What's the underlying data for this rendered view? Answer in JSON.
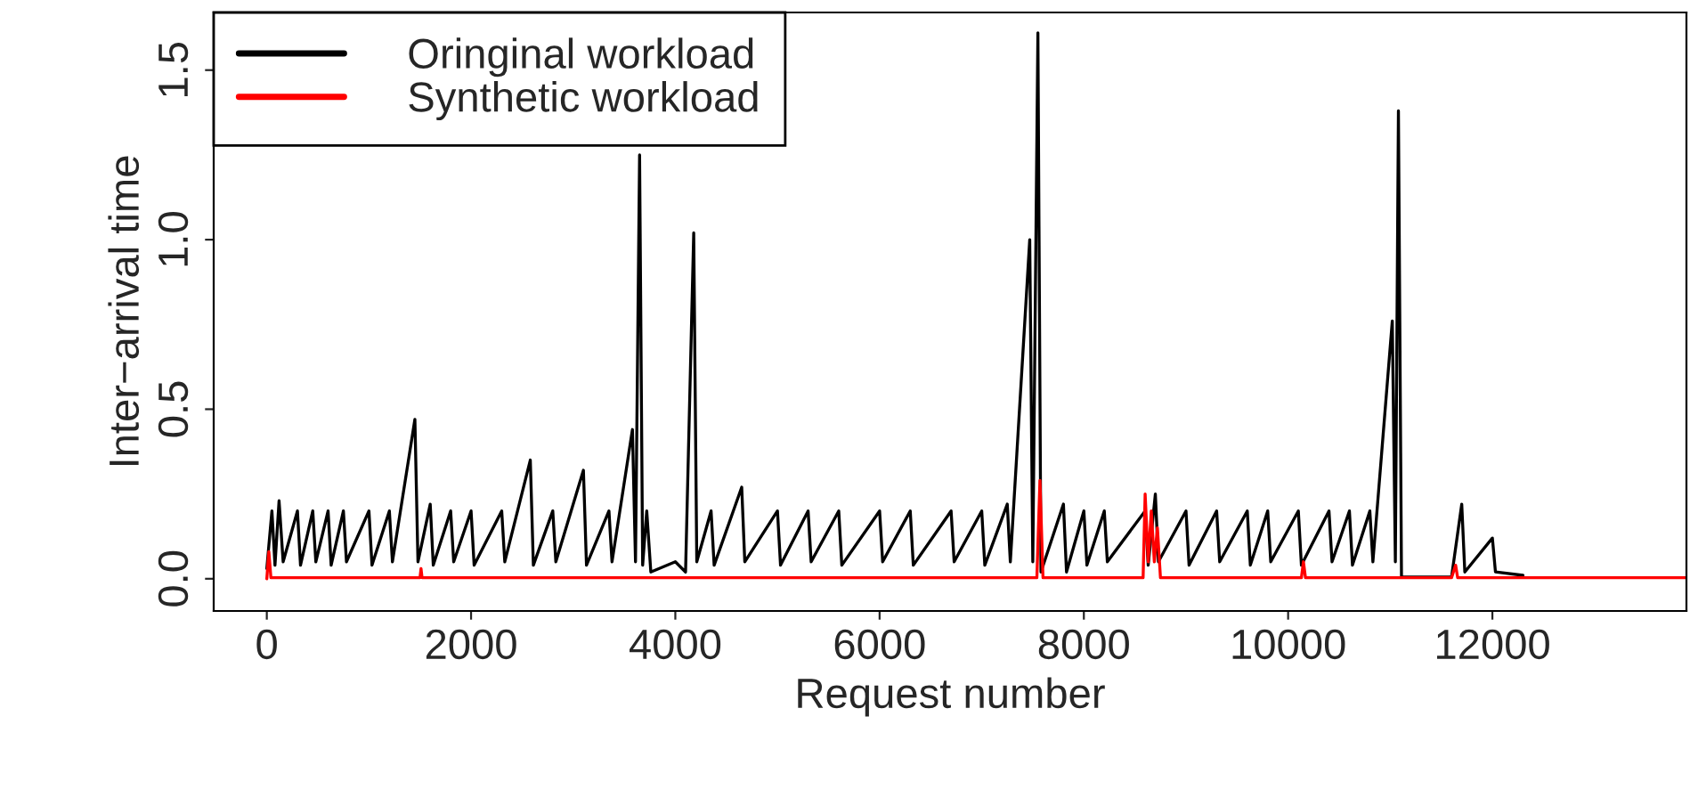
{
  "chart_data": {
    "type": "line",
    "xlabel": "Request number",
    "ylabel": "Inter−arrival time",
    "xlim": [
      -520,
      13900
    ],
    "ylim": [
      -0.095,
      1.67
    ],
    "xticks": [
      0,
      2000,
      4000,
      6000,
      8000,
      10000,
      12000
    ],
    "yticks": [
      {
        "value": 0,
        "label": "0.0"
      },
      {
        "value": 0.5,
        "label": "0.5"
      },
      {
        "value": 1,
        "label": "1.0"
      },
      {
        "value": 1.5,
        "label": "1.5"
      }
    ],
    "grid": false,
    "legend": "top left",
    "marker": "none",
    "line_style": "solid",
    "series": [
      {
        "name": "Oringinal workload",
        "color": "#000000",
        "x": [
          0,
          50,
          80,
          120,
          160,
          300,
          330,
          450,
          480,
          600,
          630,
          750,
          780,
          1000,
          1030,
          1200,
          1230,
          1450,
          1480,
          1600,
          1630,
          1800,
          1830,
          2000,
          2030,
          2300,
          2330,
          2580,
          2610,
          2800,
          2830,
          3100,
          3130,
          3350,
          3380,
          3580,
          3610,
          3650,
          3680,
          3720,
          3760,
          4000,
          4100,
          4180,
          4210,
          4350,
          4380,
          4650,
          4680,
          5000,
          5030,
          5300,
          5330,
          5600,
          5630,
          6000,
          6030,
          6300,
          6330,
          6700,
          6730,
          7000,
          7030,
          7250,
          7280,
          7470,
          7500,
          7550,
          7580,
          7800,
          7830,
          8000,
          8030,
          8200,
          8230,
          8600,
          8630,
          8700,
          8730,
          9000,
          9030,
          9300,
          9330,
          9600,
          9630,
          9800,
          9830,
          10100,
          10130,
          10400,
          10430,
          10600,
          10630,
          10800,
          10830,
          11020,
          11050,
          11080,
          11110,
          11600,
          11700,
          11730,
          12000,
          12030,
          12300
        ],
        "values": [
          0.03,
          0.2,
          0.04,
          0.23,
          0.05,
          0.2,
          0.04,
          0.2,
          0.05,
          0.2,
          0.04,
          0.2,
          0.05,
          0.2,
          0.04,
          0.2,
          0.05,
          0.47,
          0.05,
          0.22,
          0.04,
          0.2,
          0.05,
          0.2,
          0.04,
          0.2,
          0.05,
          0.35,
          0.04,
          0.2,
          0.05,
          0.32,
          0.04,
          0.2,
          0.05,
          0.44,
          0.05,
          1.25,
          0.04,
          0.2,
          0.02,
          0.05,
          0.02,
          1.02,
          0.05,
          0.2,
          0.04,
          0.27,
          0.05,
          0.2,
          0.04,
          0.2,
          0.05,
          0.2,
          0.04,
          0.2,
          0.05,
          0.2,
          0.04,
          0.2,
          0.05,
          0.2,
          0.04,
          0.22,
          0.05,
          1.0,
          0.05,
          1.61,
          0.02,
          0.22,
          0.02,
          0.2,
          0.04,
          0.2,
          0.05,
          0.2,
          0.04,
          0.25,
          0.05,
          0.2,
          0.04,
          0.2,
          0.05,
          0.2,
          0.04,
          0.2,
          0.05,
          0.2,
          0.04,
          0.2,
          0.05,
          0.2,
          0.04,
          0.2,
          0.05,
          0.76,
          0.05,
          1.38,
          0.005,
          0.005,
          0.22,
          0.02,
          0.12,
          0.02,
          0.01
        ]
      },
      {
        "name": "Synthetic workload",
        "color": "#ff0000",
        "x": [
          0,
          20,
          40,
          1500,
          1510,
          1520,
          7540,
          7570,
          7600,
          8580,
          8600,
          8630,
          8660,
          8690,
          8720,
          8750,
          10130,
          10150,
          10170,
          10560,
          10580,
          10600,
          11600,
          11620,
          11640,
          11660,
          13900
        ],
        "values": [
          0,
          0.08,
          0.003,
          0.003,
          0.03,
          0.003,
          0.003,
          0.29,
          0.003,
          0.003,
          0.25,
          0.05,
          0.2,
          0.05,
          0.15,
          0.003,
          0.003,
          0.05,
          0.003,
          0.003,
          null,
          0.003,
          0.003,
          null,
          0.04,
          0.003,
          0.003
        ]
      }
    ]
  }
}
